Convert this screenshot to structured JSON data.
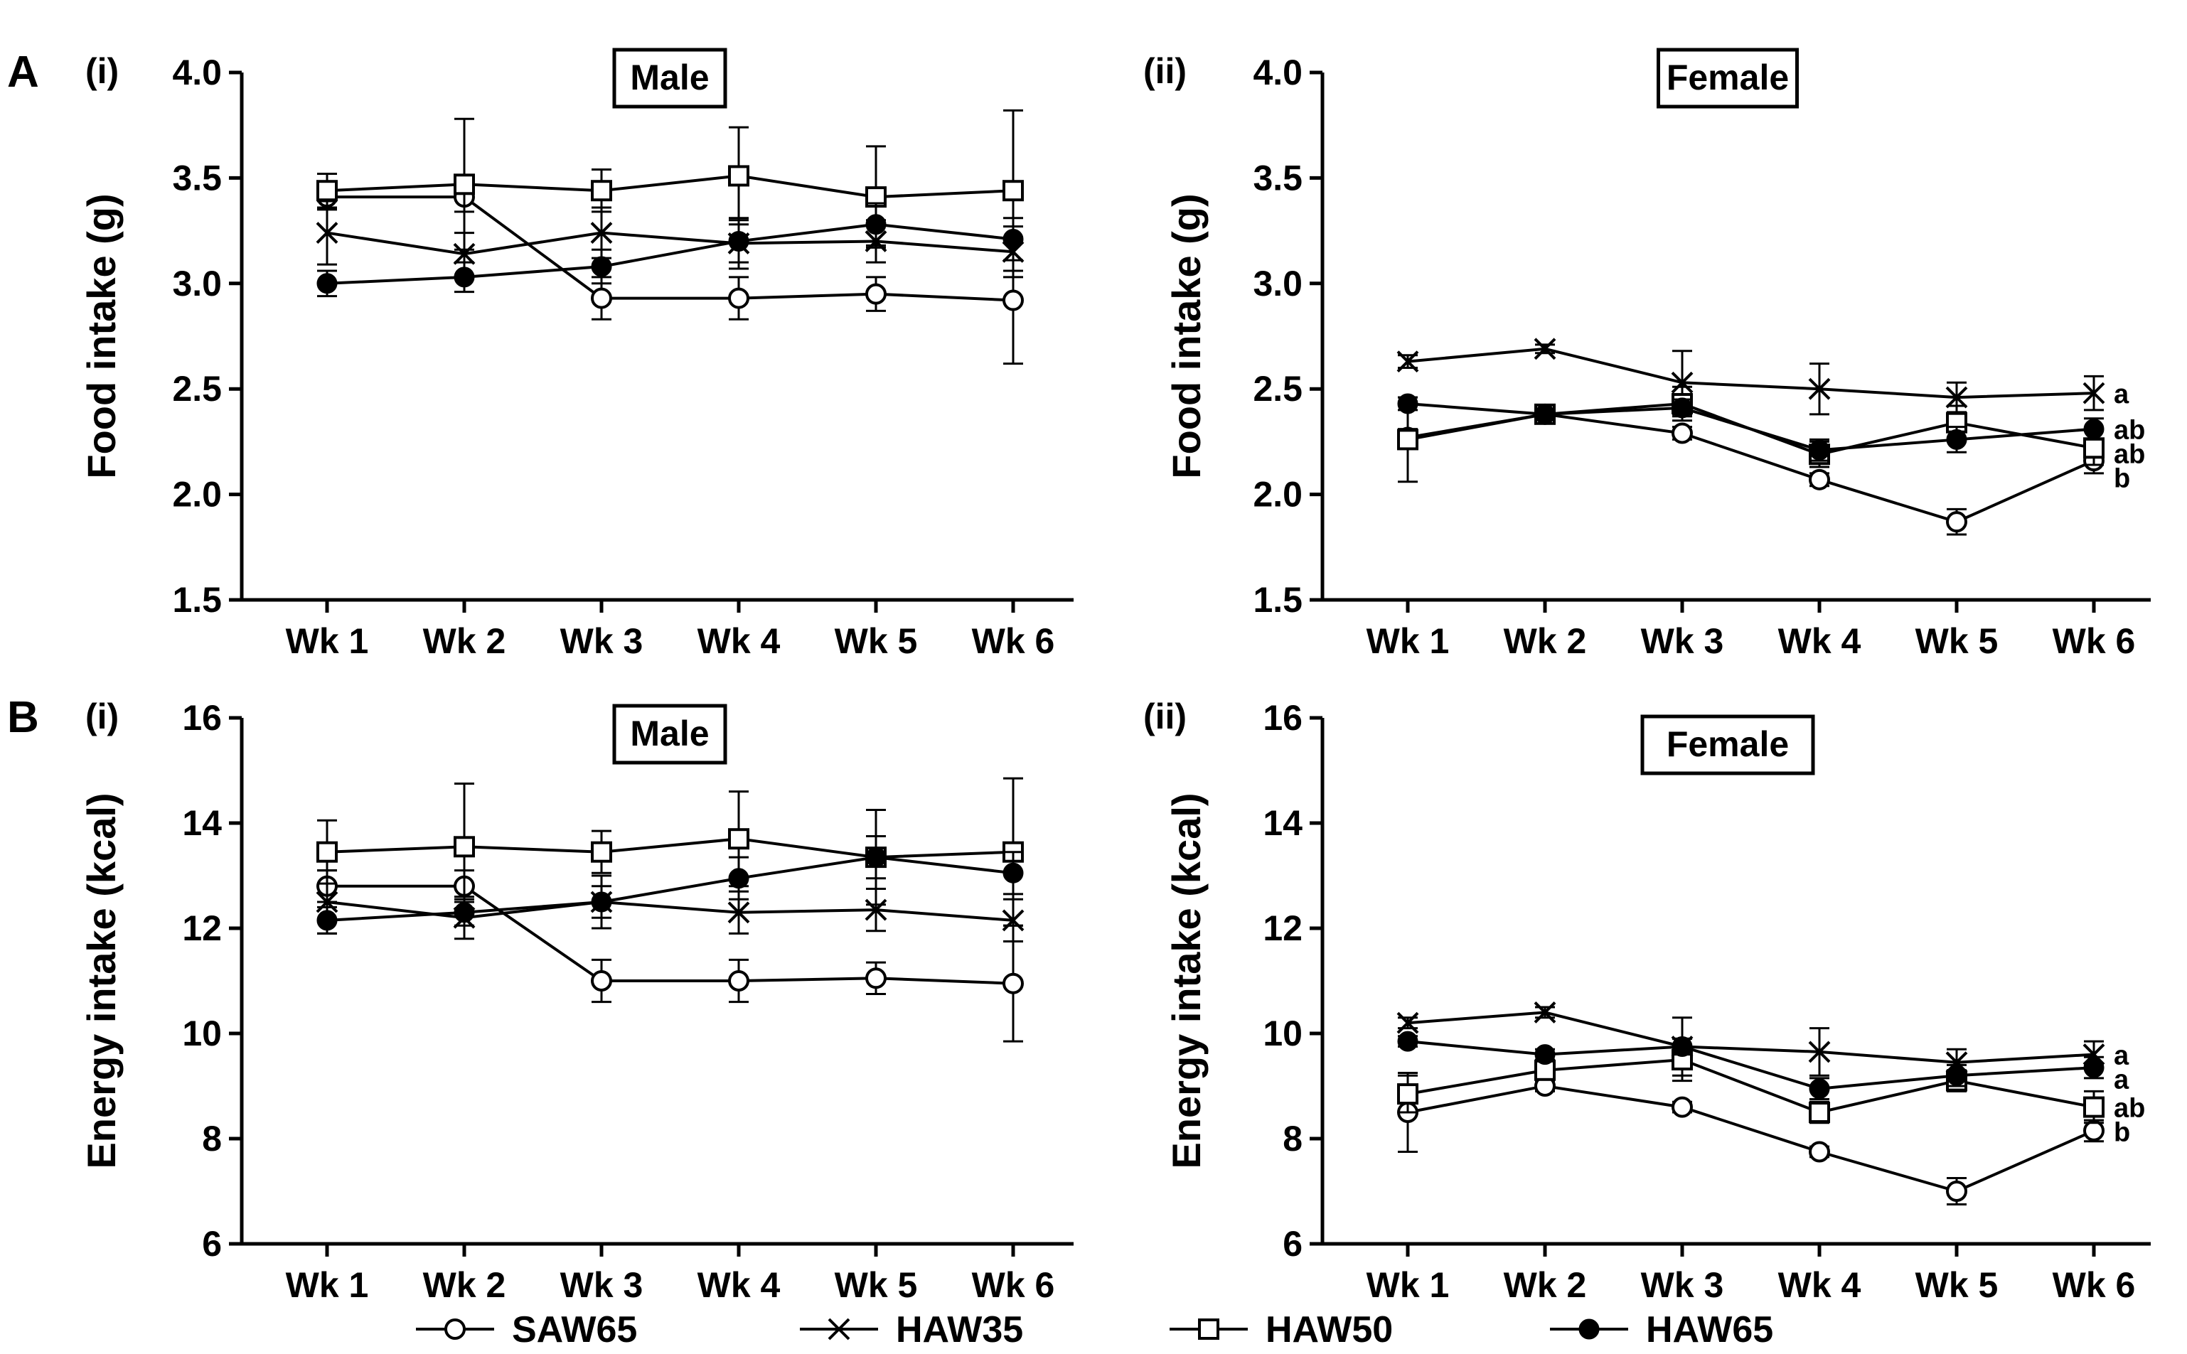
{
  "figure": {
    "legend": [
      {
        "name": "SAW65",
        "marker": "open-circle"
      },
      {
        "name": "HAW35",
        "marker": "x-cross"
      },
      {
        "name": "HAW50",
        "marker": "open-square"
      },
      {
        "name": "HAW65",
        "marker": "filled-circle"
      }
    ]
  },
  "chart_data": [
    {
      "type": "line",
      "panel": "A",
      "sublabel": "(i)",
      "title": "Male",
      "xlabel": "",
      "ylabel": "Food intake (g)",
      "ylim": [
        1.5,
        4.0
      ],
      "yticks": [
        "1.5",
        "2.0",
        "2.5",
        "3.0",
        "3.5",
        "4.0"
      ],
      "categories": [
        "Wk 1",
        "Wk 2",
        "Wk 3",
        "Wk 4",
        "Wk 5",
        "Wk 6"
      ],
      "series": [
        {
          "name": "SAW65",
          "values": [
            3.41,
            3.41,
            2.93,
            2.93,
            2.95,
            2.92
          ],
          "errors": [
            0.06,
            0.07,
            0.1,
            0.1,
            0.08,
            0.3
          ]
        },
        {
          "name": "HAW35",
          "values": [
            3.24,
            3.14,
            3.24,
            3.19,
            3.2,
            3.15
          ],
          "errors": [
            0.15,
            0.1,
            0.12,
            0.12,
            0.1,
            0.12
          ]
        },
        {
          "name": "HAW50",
          "values": [
            3.44,
            3.47,
            3.44,
            3.51,
            3.41,
            3.44
          ],
          "errors": [
            0.08,
            0.31,
            0.1,
            0.23,
            0.24,
            0.38
          ]
        },
        {
          "name": "HAW65",
          "values": [
            3.0,
            3.03,
            3.08,
            3.2,
            3.28,
            3.21
          ],
          "errors": [
            0.06,
            0.07,
            0.08,
            0.1,
            0.1,
            0.1
          ]
        }
      ],
      "annotations": []
    },
    {
      "type": "line",
      "panel": "",
      "sublabel": "(ii)",
      "title": "Female",
      "xlabel": "",
      "ylabel": "Food intake (g)",
      "ylim": [
        1.5,
        4.0
      ],
      "yticks": [
        "1.5",
        "2.0",
        "2.5",
        "3.0",
        "3.5",
        "4.0"
      ],
      "categories": [
        "Wk 1",
        "Wk 2",
        "Wk 3",
        "Wk 4",
        "Wk 5",
        "Wk 6"
      ],
      "series": [
        {
          "name": "SAW65",
          "values": [
            2.27,
            2.38,
            2.29,
            2.07,
            1.87,
            2.16
          ],
          "errors": [
            0.04,
            0.02,
            0.03,
            0.03,
            0.06,
            0.06
          ]
        },
        {
          "name": "HAW35",
          "values": [
            2.63,
            2.69,
            2.53,
            2.5,
            2.46,
            2.48
          ],
          "errors": [
            0.03,
            0.02,
            0.15,
            0.12,
            0.07,
            0.08
          ]
        },
        {
          "name": "HAW50",
          "values": [
            2.26,
            2.38,
            2.43,
            2.19,
            2.34,
            2.22
          ],
          "errors": [
            0.2,
            0.03,
            0.08,
            0.06,
            0.08,
            0.08
          ]
        },
        {
          "name": "HAW65",
          "values": [
            2.43,
            2.38,
            2.41,
            2.21,
            2.26,
            2.31
          ],
          "errors": [
            0.03,
            0.02,
            0.04,
            0.05,
            0.06,
            0.05
          ]
        }
      ],
      "annotations": [
        "a",
        "ab",
        "ab",
        "b"
      ]
    },
    {
      "type": "line",
      "panel": "B",
      "sublabel": "(i)",
      "title": "Male",
      "xlabel": "",
      "ylabel": "Energy intake (kcal)",
      "ylim": [
        6,
        16
      ],
      "yticks": [
        "6",
        "8",
        "10",
        "12",
        "14",
        "16"
      ],
      "categories": [
        "Wk 1",
        "Wk 2",
        "Wk 3",
        "Wk 4",
        "Wk 5",
        "Wk 6"
      ],
      "series": [
        {
          "name": "SAW65",
          "values": [
            12.8,
            12.8,
            11.0,
            11.0,
            11.05,
            10.95
          ],
          "errors": [
            0.3,
            0.3,
            0.4,
            0.4,
            0.3,
            1.1
          ]
        },
        {
          "name": "HAW35",
          "values": [
            12.5,
            12.2,
            12.5,
            12.3,
            12.35,
            12.15
          ],
          "errors": [
            0.6,
            0.4,
            0.5,
            0.4,
            0.4,
            0.4
          ]
        },
        {
          "name": "HAW50",
          "values": [
            13.45,
            13.55,
            13.45,
            13.7,
            13.35,
            13.45
          ],
          "errors": [
            0.6,
            1.2,
            0.4,
            0.9,
            0.9,
            1.4
          ]
        },
        {
          "name": "HAW65",
          "values": [
            12.15,
            12.3,
            12.5,
            12.95,
            13.35,
            13.05
          ],
          "errors": [
            0.25,
            0.25,
            0.3,
            0.4,
            0.4,
            0.4
          ]
        }
      ],
      "annotations": []
    },
    {
      "type": "line",
      "panel": "",
      "sublabel": "(ii)",
      "title": "Female",
      "xlabel": "",
      "ylabel": "Energy intake (kcal)",
      "ylim": [
        6,
        16
      ],
      "yticks": [
        "6",
        "8",
        "10",
        "12",
        "14",
        "16"
      ],
      "categories": [
        "Wk 1",
        "Wk 2",
        "Wk 3",
        "Wk 4",
        "Wk 5",
        "Wk 6"
      ],
      "series": [
        {
          "name": "SAW65",
          "values": [
            8.5,
            9.0,
            8.6,
            7.75,
            7.0,
            8.15
          ],
          "errors": [
            0.75,
            0.1,
            0.1,
            0.1,
            0.25,
            0.2
          ]
        },
        {
          "name": "HAW35",
          "values": [
            10.2,
            10.4,
            9.75,
            9.65,
            9.45,
            9.6
          ],
          "errors": [
            0.1,
            0.1,
            0.55,
            0.45,
            0.25,
            0.25
          ]
        },
        {
          "name": "HAW50",
          "values": [
            8.85,
            9.3,
            9.5,
            8.5,
            9.1,
            8.6
          ],
          "errors": [
            0.35,
            0.1,
            0.4,
            0.2,
            0.2,
            0.3
          ]
        },
        {
          "name": "HAW65",
          "values": [
            9.85,
            9.6,
            9.75,
            8.95,
            9.2,
            9.35
          ],
          "errors": [
            0.1,
            0.1,
            0.15,
            0.2,
            0.2,
            0.2
          ]
        }
      ],
      "annotations": [
        "a",
        "a",
        "ab",
        "b"
      ]
    }
  ]
}
